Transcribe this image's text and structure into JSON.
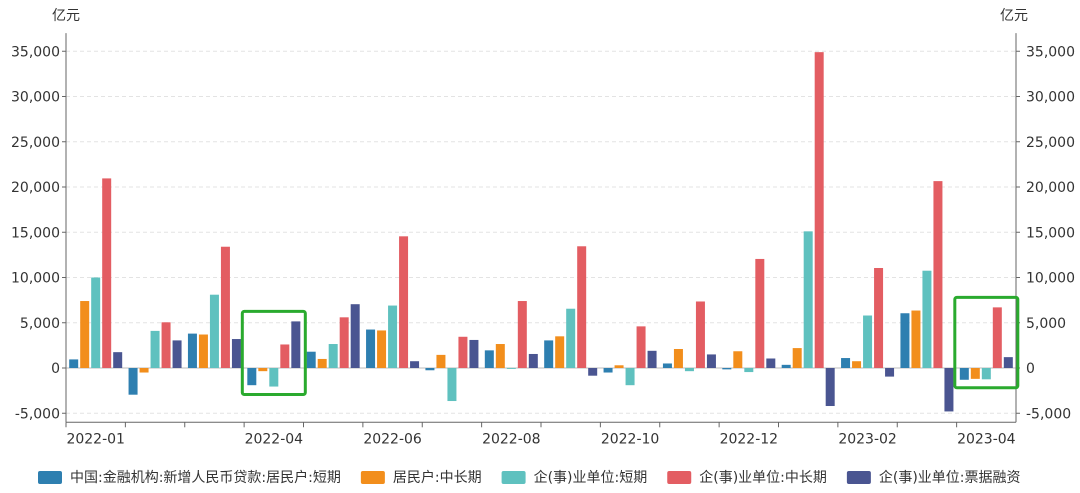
{
  "chart_data": {
    "type": "bar",
    "unit_left": "亿元",
    "unit_right": "亿元",
    "ylim": [
      -6000,
      37000
    ],
    "y_ticks": [
      -5000,
      0,
      5000,
      10000,
      15000,
      20000,
      25000,
      30000,
      35000
    ],
    "y_tick_labels": [
      "-5,000",
      "0",
      "5,000",
      "10,000",
      "15,000",
      "20,000",
      "25,000",
      "30,000",
      "35,000"
    ],
    "categories": [
      "2022-01",
      "2022-02",
      "2022-03",
      "2022-04",
      "2022-05",
      "2022-06",
      "2022-07",
      "2022-08",
      "2022-09",
      "2022-10",
      "2022-11",
      "2022-12",
      "2023-01",
      "2023-02",
      "2023-03",
      "2023-04"
    ],
    "x_tick_labels": [
      "2022-01",
      "2022-04",
      "2022-06",
      "2022-08",
      "2022-10",
      "2022-12",
      "2023-02",
      "2023-04"
    ],
    "series": [
      {
        "name": "中国:金融机构:新增人民币贷款:居民户:短期",
        "color": "#2e7fb0",
        "values": [
          950,
          -2950,
          3800,
          -1900,
          1800,
          4250,
          -250,
          1950,
          3050,
          -500,
          500,
          -150,
          350,
          1100,
          6050,
          -1300
        ]
      },
      {
        "name": "居民户:中长期",
        "color": "#f28e1c",
        "values": [
          7400,
          -500,
          3700,
          -350,
          1000,
          4150,
          1450,
          2650,
          3500,
          300,
          2100,
          1850,
          2200,
          750,
          6350,
          -1200
        ]
      },
      {
        "name": "企(事)业单位:短期",
        "color": "#5fc1bf",
        "values": [
          10000,
          4100,
          8100,
          -2050,
          2650,
          6900,
          -3650,
          -100,
          6550,
          -1900,
          -350,
          -450,
          15100,
          5800,
          10750,
          -1250
        ]
      },
      {
        "name": "企(事)业单位:中长期",
        "color": "#e35d62",
        "values": [
          20950,
          5050,
          13400,
          2600,
          5600,
          14550,
          3450,
          7400,
          13450,
          4600,
          7350,
          12050,
          34900,
          11050,
          20650,
          6700
        ]
      },
      {
        "name": "企(事)业单位:票据融资",
        "color": "#4a5591",
        "values": [
          1750,
          3050,
          3200,
          5150,
          7050,
          750,
          3100,
          1550,
          -850,
          1900,
          1500,
          1050,
          -4200,
          -950,
          -4800,
          1200
        ]
      }
    ],
    "highlights": [
      {
        "category": "2022-04",
        "color": "#2aaa2e"
      },
      {
        "category": "2023-04",
        "color": "#2aaa2e"
      }
    ],
    "grid": true,
    "legend_position": "bottom"
  }
}
